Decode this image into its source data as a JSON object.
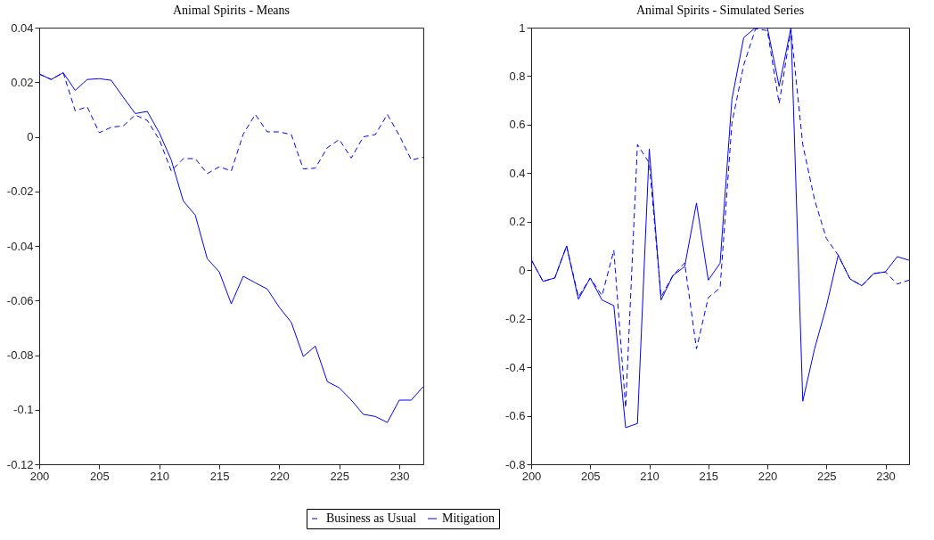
{
  "chart_data": [
    {
      "type": "line",
      "title": "Animal Spirits - Means",
      "x": [
        200,
        201,
        202,
        203,
        204,
        205,
        206,
        207,
        208,
        209,
        210,
        211,
        212,
        213,
        214,
        215,
        216,
        217,
        218,
        219,
        220,
        221,
        222,
        223,
        224,
        225,
        226,
        227,
        228,
        229,
        230,
        231,
        232
      ],
      "xlim": [
        200,
        232
      ],
      "xticks": [
        200,
        205,
        210,
        215,
        220,
        225,
        230
      ],
      "ylim": [
        -0.12,
        0.04
      ],
      "yticks": [
        -0.12,
        -0.1,
        -0.08,
        -0.06,
        -0.04,
        -0.02,
        0,
        0.02,
        0.04
      ],
      "grid": false,
      "legend": "bottom",
      "series": [
        {
          "name": "Business as Usual",
          "color": "#0000ff",
          "line_style": "dashed",
          "values": [
            0.023,
            0.021,
            0.0235,
            0.0095,
            0.011,
            0.0015,
            0.0035,
            0.004,
            0.008,
            0.006,
            -0.001,
            -0.0125,
            -0.008,
            -0.008,
            -0.0135,
            -0.011,
            -0.0125,
            0.001,
            0.0082,
            0.0018,
            0.0018,
            0.0008,
            -0.0118,
            -0.0115,
            -0.004,
            -0.001,
            -0.0078,
            0,
            0.0008,
            0.0082,
            0.0005,
            -0.0085,
            -0.0075
          ]
        },
        {
          "name": "Mitigation",
          "color": "#0000ff",
          "line_style": "solid",
          "values": [
            0.023,
            0.021,
            0.0235,
            0.017,
            0.021,
            0.0213,
            0.0207,
            0.0145,
            0.0085,
            0.0093,
            0.0015,
            -0.0085,
            -0.0235,
            -0.0287,
            -0.0447,
            -0.0495,
            -0.0612,
            -0.0511,
            -0.0535,
            -0.0558,
            -0.0625,
            -0.068,
            -0.0805,
            -0.0767,
            -0.0897,
            -0.092,
            -0.0965,
            -0.1017,
            -0.1025,
            -0.1047,
            -0.0965,
            -0.0965,
            -0.0915
          ]
        }
      ]
    },
    {
      "type": "line",
      "title": "Animal Spirits - Simulated Series",
      "x": [
        200,
        201,
        202,
        203,
        204,
        205,
        206,
        207,
        208,
        209,
        210,
        211,
        212,
        213,
        214,
        215,
        216,
        217,
        218,
        219,
        220,
        221,
        222,
        223,
        224,
        225,
        226,
        227,
        228,
        229,
        230,
        231,
        232
      ],
      "xlim": [
        200,
        232
      ],
      "xticks": [
        200,
        205,
        210,
        215,
        220,
        225,
        230
      ],
      "ylim": [
        -0.8,
        1
      ],
      "yticks": [
        -0.8,
        -0.6,
        -0.4,
        -0.2,
        0,
        0.2,
        0.4,
        0.6,
        0.8,
        1
      ],
      "grid": false,
      "legend": "bottom",
      "series": [
        {
          "name": "Business as Usual",
          "color": "#0000ff",
          "line_style": "dashed",
          "values": [
            0.044,
            -0.046,
            -0.032,
            0.1,
            -0.11,
            -0.032,
            -0.105,
            0.082,
            -0.567,
            0.518,
            0.442,
            -0.11,
            -0.022,
            0.03,
            -0.324,
            -0.113,
            -0.073,
            0.606,
            0.846,
            0.995,
            0.988,
            0.687,
            0.992,
            0.518,
            0.29,
            0.131,
            0.062,
            -0.036,
            -0.064,
            -0.014,
            -0.007,
            -0.057,
            -0.041
          ]
        },
        {
          "name": "Mitigation",
          "color": "#0000ff",
          "line_style": "solid",
          "values": [
            0.044,
            -0.046,
            -0.032,
            0.1,
            -0.12,
            -0.032,
            -0.123,
            -0.146,
            -0.649,
            -0.632,
            0.5,
            -0.123,
            -0.022,
            0.015,
            0.277,
            -0.041,
            0.029,
            0.705,
            0.959,
            1,
            1,
            0.758,
            1,
            -0.54,
            -0.324,
            -0.149,
            0.062,
            -0.036,
            -0.064,
            -0.014,
            -0.007,
            0.056,
            0.041
          ]
        }
      ]
    }
  ]
}
